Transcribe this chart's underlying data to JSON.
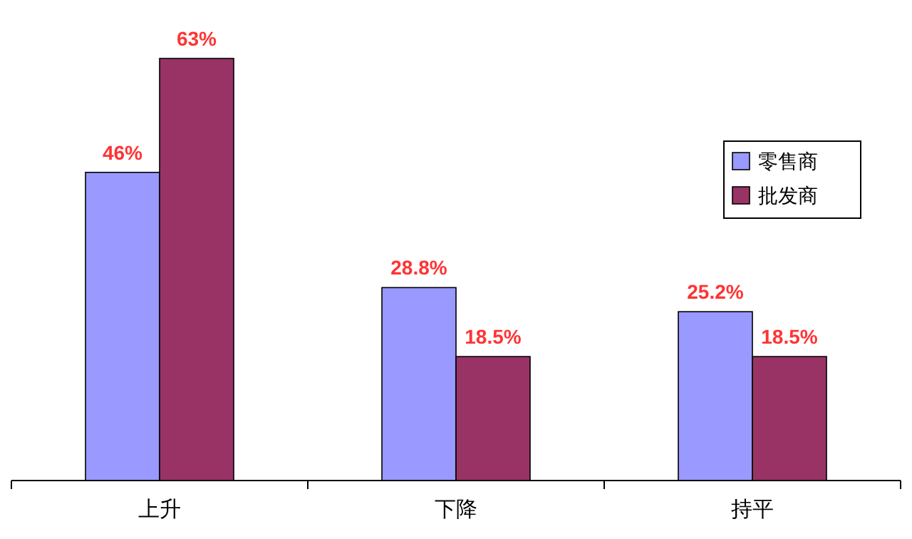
{
  "chart_data": {
    "type": "bar",
    "categories": [
      "上升",
      "下降",
      "持平"
    ],
    "series": [
      {
        "name": "零售商",
        "color": "#9999ff",
        "values": [
          46,
          28.8,
          25.2
        ],
        "value_labels": [
          "46%",
          "28.8%",
          "25.2%"
        ]
      },
      {
        "name": "批发商",
        "color": "#993366",
        "values": [
          63,
          18.5,
          18.5
        ],
        "value_labels": [
          "63%",
          "18.5%",
          "18.5%"
        ]
      }
    ],
    "legend": "right"
  }
}
